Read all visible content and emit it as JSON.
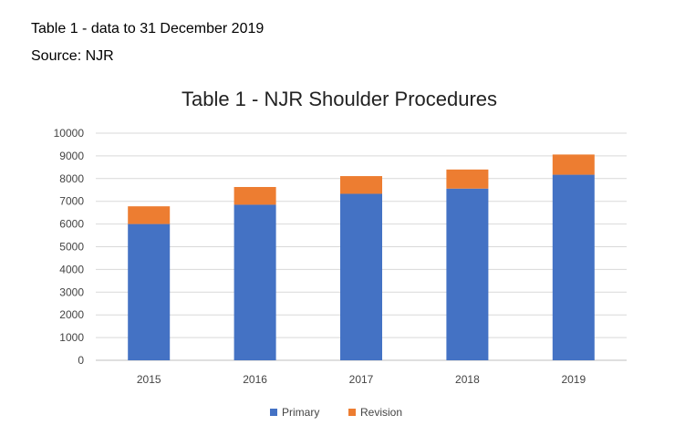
{
  "header": {
    "line1": "Table 1 - data to 31 December 2019",
    "line2": "Source: NJR"
  },
  "chart_data": {
    "type": "bar",
    "stacked": true,
    "title": "Table 1 - NJR Shoulder Procedures",
    "xlabel": "",
    "ylabel": "",
    "categories": [
      "2015",
      "2016",
      "2017",
      "2018",
      "2019"
    ],
    "series": [
      {
        "name": "Primary",
        "color": "#4472C4",
        "values": [
          6000,
          6850,
          7330,
          7560,
          8170
        ]
      },
      {
        "name": "Revision",
        "color": "#ED7D31",
        "values": [
          780,
          780,
          780,
          840,
          890
        ]
      }
    ],
    "ylim": [
      0,
      10000
    ],
    "yticks": [
      0,
      1000,
      2000,
      3000,
      4000,
      5000,
      6000,
      7000,
      8000,
      9000,
      10000
    ],
    "grid": true,
    "legend": "bottom"
  }
}
